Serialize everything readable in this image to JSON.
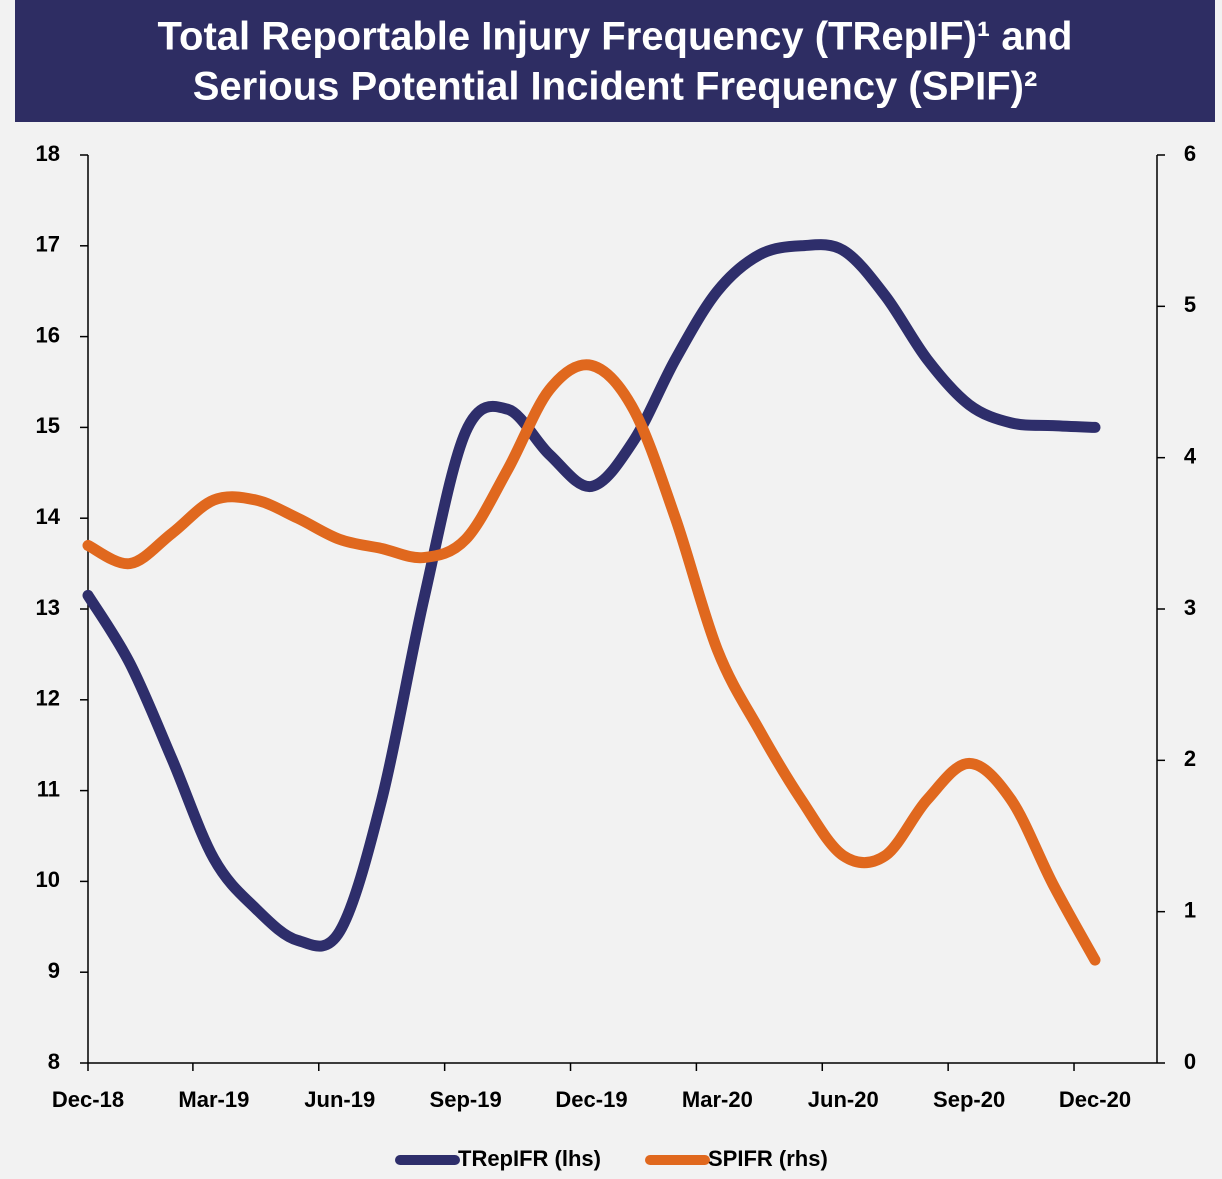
{
  "chart_data": {
    "type": "line",
    "title": [
      "Total Reportable Injury Frequency (TRepIF)¹ and",
      "Serious Potential Incident Frequency (SPIF)²"
    ],
    "categories": [
      "Dec-18",
      null,
      null,
      "Mar-19",
      null,
      null,
      "Jun-19",
      null,
      null,
      "Sep-19",
      null,
      null,
      "Dec-19",
      null,
      null,
      "Mar-20",
      null,
      null,
      "Jun-20",
      null,
      null,
      "Sep-20",
      null,
      null,
      "Dec-20"
    ],
    "series": [
      {
        "name": "TRepIFR (lhs)",
        "color": "#2e2e6b",
        "values": [
          13.15,
          12.4,
          11.35,
          10.25,
          9.7,
          9.35,
          9.45,
          10.9,
          13.1,
          14.95,
          15.2,
          14.7,
          14.35,
          14.85,
          15.75,
          16.5,
          16.9,
          17.0,
          16.95,
          16.45,
          15.75,
          15.25,
          15.05,
          15.02,
          15.0
        ]
      },
      {
        "name": "SPIFR (rhs)",
        "color": "#e0681e",
        "axis": "y2",
        "values": [
          3.42,
          3.3,
          3.5,
          3.72,
          3.72,
          3.6,
          3.46,
          3.4,
          3.34,
          3.46,
          3.92,
          4.45,
          4.61,
          4.32,
          3.6,
          2.73,
          2.2,
          1.74,
          1.37,
          1.37,
          1.74,
          1.98,
          1.74,
          1.18,
          0.68
        ]
      }
    ],
    "ylim": [
      8,
      18
    ],
    "yticks": [
      8,
      9,
      10,
      11,
      12,
      13,
      14,
      15,
      16,
      17,
      18
    ],
    "y2lim": [
      0,
      6
    ],
    "y2ticks": [
      0,
      1,
      2,
      3,
      4,
      5,
      6
    ],
    "legend": "bottom"
  }
}
